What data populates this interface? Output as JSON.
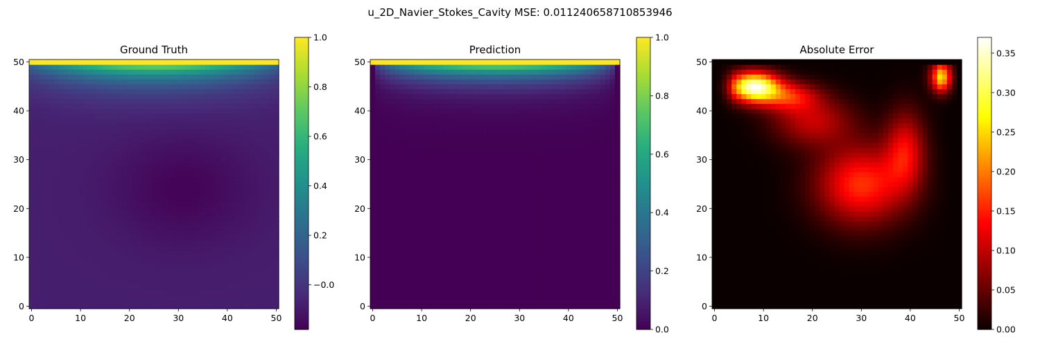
{
  "figure": {
    "suptitle": "u_2D_Navier_Stokes_Cavity MSE: 0.011240658710853946"
  },
  "chart_data": [
    {
      "type": "heatmap",
      "title": "Ground Truth",
      "colormap": "viridis",
      "grid": false,
      "grid_size": [
        51,
        51
      ],
      "xlim": [
        -0.5,
        50.5
      ],
      "ylim": [
        -0.5,
        50.5
      ],
      "xticks": [
        0,
        10,
        20,
        30,
        40,
        50
      ],
      "yticks": [
        0,
        10,
        20,
        30,
        40,
        50
      ],
      "colorbar": {
        "min": -0.18,
        "max": 1.0,
        "ticks": [
          -0.0,
          0.2,
          0.4,
          0.6,
          0.8,
          1.0
        ],
        "tick_labels": [
          "−0.0",
          "0.2",
          "0.4",
          "0.6",
          "0.8",
          "1.0"
        ]
      },
      "field": {
        "top_row_value": 1.0,
        "lid_decay_rows": 7,
        "background_value": -0.08,
        "vortex_center": [
          31,
          24
        ],
        "vortex_min": -0.17
      }
    },
    {
      "type": "heatmap",
      "title": "Prediction",
      "colormap": "viridis",
      "grid": false,
      "grid_size": [
        51,
        51
      ],
      "xlim": [
        -0.5,
        50.5
      ],
      "ylim": [
        -0.5,
        50.5
      ],
      "xticks": [
        0,
        10,
        20,
        30,
        40,
        50
      ],
      "yticks": [
        0,
        10,
        20,
        30,
        40,
        50
      ],
      "colorbar": {
        "min": 0.0,
        "max": 1.0,
        "ticks": [
          0.0,
          0.2,
          0.4,
          0.6,
          0.8,
          1.0
        ],
        "tick_labels": [
          "0.0",
          "0.2",
          "0.4",
          "0.6",
          "0.8",
          "1.0"
        ]
      },
      "field": {
        "top_row_value": 1.0,
        "lid_decay_rows": 6,
        "background_value": 0.0
      }
    },
    {
      "type": "heatmap",
      "title": "Absolute Error",
      "colormap": "hot",
      "grid": false,
      "grid_size": [
        51,
        51
      ],
      "xlim": [
        -0.5,
        50.5
      ],
      "ylim": [
        -0.5,
        50.5
      ],
      "xticks": [
        0,
        10,
        20,
        30,
        40,
        50
      ],
      "yticks": [
        0,
        10,
        20,
        30,
        40,
        50
      ],
      "colorbar": {
        "min": 0.0,
        "max": 0.37,
        "ticks": [
          0.0,
          0.05,
          0.1,
          0.15,
          0.2,
          0.25,
          0.3,
          0.35
        ],
        "tick_labels": [
          "0.00",
          "0.05",
          "0.10",
          "0.15",
          "0.20",
          "0.25",
          "0.30",
          "0.35"
        ]
      },
      "hotspots": [
        {
          "x": 8,
          "y": 45,
          "peak": 0.35,
          "sx": 5,
          "sy": 3
        },
        {
          "x": 47,
          "y": 47,
          "peak": 0.3,
          "sx": 2.5,
          "sy": 3
        },
        {
          "x": 30,
          "y": 25,
          "peak": 0.16,
          "sx": 9,
          "sy": 8
        },
        {
          "x": 39,
          "y": 32,
          "peak": 0.12,
          "sx": 4,
          "sy": 8
        },
        {
          "x": 20,
          "y": 38,
          "peak": 0.1,
          "sx": 8,
          "sy": 5
        },
        {
          "x": 15,
          "y": 43,
          "peak": 0.13,
          "sx": 6,
          "sy": 3
        }
      ]
    }
  ]
}
